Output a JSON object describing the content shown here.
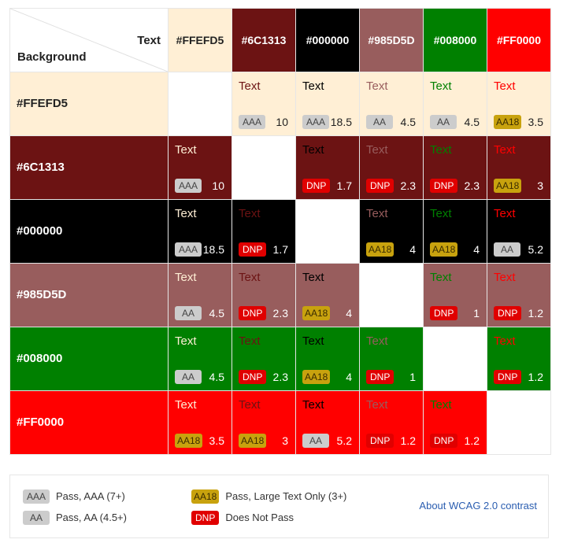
{
  "corner": {
    "text_label": "Text",
    "background_label": "Background"
  },
  "colors": [
    "#FFEFD5",
    "#6C1313",
    "#000000",
    "#985D5D",
    "#008000",
    "#FF0000"
  ],
  "header_text_colors": [
    "#222222",
    "#ffffff",
    "#ffffff",
    "#ffffff",
    "#ffffff",
    "#ffffff"
  ],
  "sample_text": "Text",
  "rows": [
    {
      "label": "#FFEFD5",
      "label_color": "#222222",
      "cells": [
        null,
        {
          "badge": "AAA",
          "ratio": "10",
          "ratio_color": "#222222"
        },
        {
          "badge": "AAA",
          "ratio": "18.5",
          "ratio_color": "#222222"
        },
        {
          "badge": "AA",
          "ratio": "4.5",
          "ratio_color": "#222222"
        },
        {
          "badge": "AA",
          "ratio": "4.5",
          "ratio_color": "#222222"
        },
        {
          "badge": "AA18",
          "ratio": "3.5",
          "ratio_color": "#222222"
        }
      ]
    },
    {
      "label": "#6C1313",
      "label_color": "#ffffff",
      "cells": [
        {
          "badge": "AAA",
          "ratio": "10",
          "ratio_color": "#ffffff"
        },
        null,
        {
          "badge": "DNP",
          "ratio": "1.7",
          "ratio_color": "#ffffff"
        },
        {
          "badge": "DNP",
          "ratio": "2.3",
          "ratio_color": "#ffffff"
        },
        {
          "badge": "DNP",
          "ratio": "2.3",
          "ratio_color": "#ffffff"
        },
        {
          "badge": "AA18",
          "ratio": "3",
          "ratio_color": "#ffffff"
        }
      ]
    },
    {
      "label": "#000000",
      "label_color": "#ffffff",
      "cells": [
        {
          "badge": "AAA",
          "ratio": "18.5",
          "ratio_color": "#ffffff"
        },
        {
          "badge": "DNP",
          "ratio": "1.7",
          "ratio_color": "#ffffff"
        },
        null,
        {
          "badge": "AA18",
          "ratio": "4",
          "ratio_color": "#ffffff"
        },
        {
          "badge": "AA18",
          "ratio": "4",
          "ratio_color": "#ffffff"
        },
        {
          "badge": "AA",
          "ratio": "5.2",
          "ratio_color": "#ffffff"
        }
      ]
    },
    {
      "label": "#985D5D",
      "label_color": "#ffffff",
      "cells": [
        {
          "badge": "AA",
          "ratio": "4.5",
          "ratio_color": "#ffffff"
        },
        {
          "badge": "DNP",
          "ratio": "2.3",
          "ratio_color": "#ffffff"
        },
        {
          "badge": "AA18",
          "ratio": "4",
          "ratio_color": "#ffffff"
        },
        null,
        {
          "badge": "DNP",
          "ratio": "1",
          "ratio_color": "#ffffff"
        },
        {
          "badge": "DNP",
          "ratio": "1.2",
          "ratio_color": "#ffffff"
        }
      ]
    },
    {
      "label": "#008000",
      "label_color": "#ffffff",
      "cells": [
        {
          "badge": "AA",
          "ratio": "4.5",
          "ratio_color": "#ffffff"
        },
        {
          "badge": "DNP",
          "ratio": "2.3",
          "ratio_color": "#ffffff"
        },
        {
          "badge": "AA18",
          "ratio": "4",
          "ratio_color": "#ffffff"
        },
        {
          "badge": "DNP",
          "ratio": "1",
          "ratio_color": "#ffffff"
        },
        null,
        {
          "badge": "DNP",
          "ratio": "1.2",
          "ratio_color": "#ffffff"
        }
      ]
    },
    {
      "label": "#FF0000",
      "label_color": "#ffffff",
      "cells": [
        {
          "badge": "AA18",
          "ratio": "3.5",
          "ratio_color": "#ffffff"
        },
        {
          "badge": "AA18",
          "ratio": "3",
          "ratio_color": "#ffffff"
        },
        {
          "badge": "AA",
          "ratio": "5.2",
          "ratio_color": "#ffffff"
        },
        {
          "badge": "DNP",
          "ratio": "1.2",
          "ratio_color": "#ffffff"
        },
        {
          "badge": "DNP",
          "ratio": "1.2",
          "ratio_color": "#ffffff"
        },
        null
      ]
    }
  ],
  "legend": {
    "aaa": {
      "badge": "AAA",
      "text": "Pass, AAA (7+)"
    },
    "aa": {
      "badge": "AA",
      "text": "Pass, AA (4.5+)"
    },
    "aa18": {
      "badge": "AA18",
      "text": "Pass, Large Text Only (3+)"
    },
    "dnp": {
      "badge": "DNP",
      "text": "Does Not Pass"
    },
    "link_text": "About WCAG 2.0 contrast"
  }
}
